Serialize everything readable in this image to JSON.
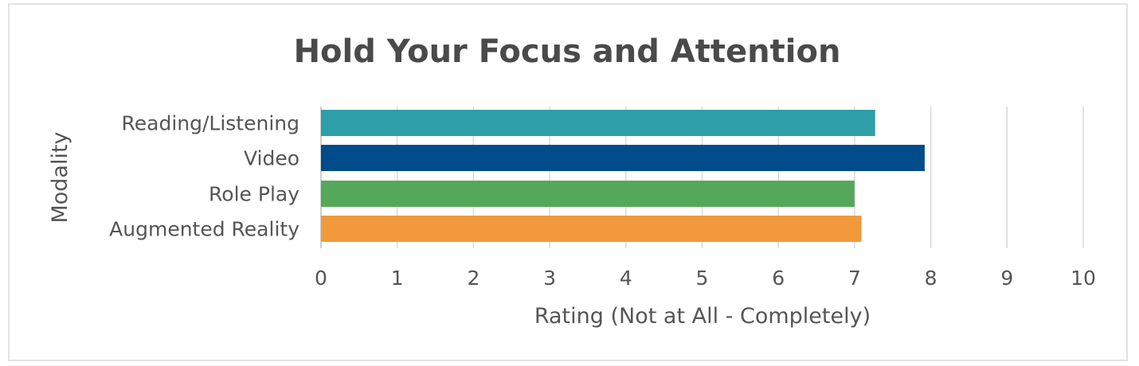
{
  "chart_data": {
    "type": "bar",
    "orientation": "horizontal",
    "title": "Hold Your Focus and Attention",
    "xlabel": "Rating (Not at All - Completely)",
    "ylabel": "Modality",
    "categories": [
      "Reading/Listening",
      "Video",
      "Role Play",
      "Augmented Reality"
    ],
    "values": [
      7.27,
      7.92,
      7.0,
      7.09
    ],
    "colors": [
      "#2e9ea9",
      "#004b8a",
      "#55a85a",
      "#f2993b"
    ],
    "xlim": [
      0,
      10
    ],
    "xticks": [
      "0",
      "1",
      "2",
      "3",
      "4",
      "5",
      "6",
      "7",
      "8",
      "9",
      "10"
    ],
    "grid": "vertical",
    "legend": "none"
  }
}
